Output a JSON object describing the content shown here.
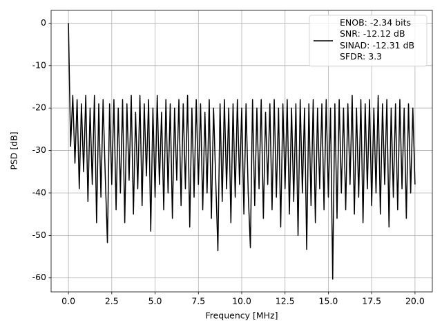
{
  "chart_data": {
    "type": "line",
    "xlabel": "Frequency [MHz]",
    "ylabel": "PSD [dB]",
    "x": [
      0,
      0.125,
      0.25,
      0.375,
      0.5,
      0.625,
      0.75,
      0.875,
      1,
      1.125,
      1.25,
      1.375,
      1.5,
      1.625,
      1.75,
      1.875,
      2,
      2.125,
      2.25,
      2.375,
      2.5,
      2.625,
      2.75,
      2.875,
      3,
      3.125,
      3.25,
      3.375,
      3.5,
      3.625,
      3.75,
      3.875,
      4,
      4.125,
      4.25,
      4.375,
      4.5,
      4.625,
      4.75,
      4.875,
      5,
      5.125,
      5.25,
      5.375,
      5.5,
      5.625,
      5.75,
      5.875,
      6,
      6.125,
      6.25,
      6.375,
      6.5,
      6.625,
      6.75,
      6.875,
      7,
      7.125,
      7.25,
      7.375,
      7.5,
      7.625,
      7.75,
      7.875,
      8,
      8.125,
      8.25,
      8.375,
      8.5,
      8.625,
      8.75,
      8.875,
      9,
      9.125,
      9.25,
      9.375,
      9.5,
      9.625,
      9.75,
      9.875,
      10,
      10.125,
      10.25,
      10.375,
      10.5,
      10.625,
      10.75,
      10.875,
      11,
      11.125,
      11.25,
      11.375,
      11.5,
      11.625,
      11.75,
      11.875,
      12,
      12.125,
      12.25,
      12.375,
      12.5,
      12.625,
      12.75,
      12.875,
      13,
      13.125,
      13.25,
      13.375,
      13.5,
      13.625,
      13.75,
      13.875,
      14,
      14.125,
      14.25,
      14.375,
      14.5,
      14.625,
      14.75,
      14.875,
      15,
      15.125,
      15.25,
      15.375,
      15.5,
      15.625,
      15.75,
      15.875,
      16,
      16.125,
      16.25,
      16.375,
      16.5,
      16.625,
      16.75,
      16.875,
      17,
      17.125,
      17.25,
      17.375,
      17.5,
      17.625,
      17.75,
      17.875,
      18,
      18.125,
      18.25,
      18.375,
      18.5,
      18.625,
      18.75,
      18.875,
      19,
      19.125,
      19.25,
      19.375,
      19.5,
      19.625,
      19.75,
      19.875,
      20
    ],
    "series": [
      {
        "name": "ENOB: -2.34 bits\nSNR: -12.12 dB\nSINAD: -12.31 dB\nSFDR: 3.3",
        "color": "#000000",
        "values": [
          0,
          -29,
          -17,
          -33,
          -18,
          -39,
          -19,
          -35,
          -17,
          -42,
          -20,
          -38,
          -17,
          -47,
          -19,
          -41,
          -18,
          -36,
          -51.7,
          -19,
          -38,
          -18,
          -44,
          -20,
          -40,
          -18,
          -47,
          -19,
          -37,
          -17,
          -45,
          -21,
          -39,
          -17,
          -43,
          -19,
          -36,
          -18,
          -49,
          -20,
          -41,
          -17,
          -38,
          -21,
          -44,
          -18,
          -40,
          -19,
          -46,
          -20,
          -37,
          -18,
          -43,
          -19,
          -39,
          -17,
          -48,
          -20,
          -41,
          -18,
          -38,
          -19,
          -44,
          -21,
          -40,
          -18,
          -46,
          -20,
          -37,
          -53.6,
          -19,
          -42,
          -18,
          -39,
          -20,
          -47,
          -19,
          -41,
          -18,
          -38,
          -20,
          -45,
          -19,
          -40,
          -52.9,
          -18,
          -43,
          -20,
          -39,
          -18,
          -46,
          -21,
          -38,
          -19,
          -44,
          -18,
          -41,
          -20,
          -48,
          -19,
          -39,
          -18,
          -45,
          -20,
          -42,
          -19,
          -50,
          -18,
          -40,
          -20,
          -53.3,
          -19,
          -43,
          -18,
          -47,
          -20,
          -39,
          -19,
          -44,
          -18,
          -41,
          -20,
          -60.3,
          -19,
          -46,
          -18,
          -40,
          -20,
          -44,
          -19,
          -38,
          -17,
          -45,
          -20,
          -41,
          -18,
          -47,
          -19,
          -39,
          -18,
          -43,
          -20,
          -40,
          -17,
          -45,
          -19,
          -38,
          -18,
          -48,
          -20,
          -41,
          -19,
          -44,
          -18,
          -39,
          -20,
          -46,
          -19,
          -40,
          -20,
          -38
        ]
      }
    ],
    "xlim": [
      -1,
      21
    ],
    "ylim": [
      -63.3,
      3
    ],
    "xticks": [
      {
        "value": 0,
        "label": "0.0"
      },
      {
        "value": 2.5,
        "label": "2.5"
      },
      {
        "value": 5,
        "label": "5.0"
      },
      {
        "value": 7.5,
        "label": "7.5"
      },
      {
        "value": 10,
        "label": "10.0"
      },
      {
        "value": 12.5,
        "label": "12.5"
      },
      {
        "value": 15,
        "label": "15.0"
      },
      {
        "value": 17.5,
        "label": "17.5"
      },
      {
        "value": 20,
        "label": "20.0"
      }
    ],
    "yticks": [
      0,
      -10,
      -20,
      -30,
      -40,
      -50,
      -60
    ],
    "grid": true,
    "legend": "upper right"
  }
}
